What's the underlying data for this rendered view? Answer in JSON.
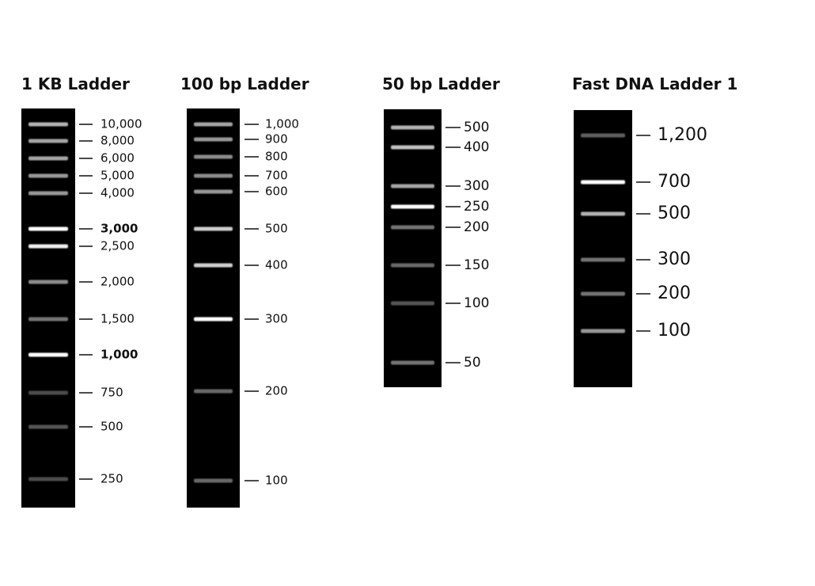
{
  "ladders": [
    {
      "title": "1 KB Ladder",
      "bands": [
        "10,000",
        "8,000",
        "6,000",
        "5,000",
        "4,000",
        "3,000",
        "2,500",
        "2,000",
        "1,500",
        "1,000",
        "750",
        "500",
        "250"
      ]
    },
    {
      "title": "100 bp Ladder",
      "bands": [
        "1,000",
        "900",
        "800",
        "700",
        "600",
        "500",
        "400",
        "300",
        "200",
        "100"
      ]
    },
    {
      "title": "50 bp Ladder",
      "bands": [
        "500",
        "400",
        "300",
        "250",
        "200",
        "150",
        "100",
        "50"
      ]
    },
    {
      "title": "Fast DNA Ladder 1",
      "bands": [
        "1,200",
        "700",
        "500",
        "300",
        "200",
        "100"
      ]
    }
  ]
}
